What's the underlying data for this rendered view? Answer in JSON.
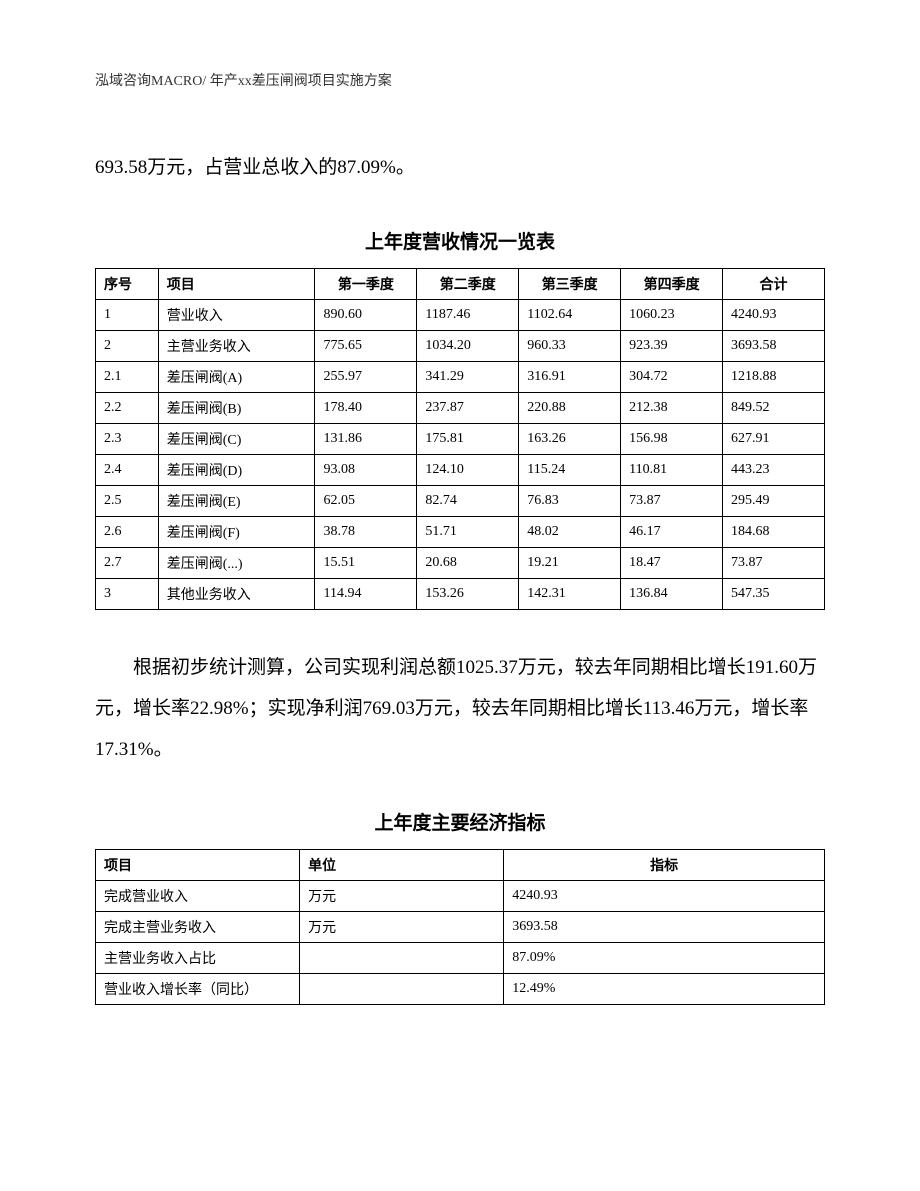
{
  "header": "泓域咨询MACRO/    年产xx差压闸阀项目实施方案",
  "intro_text": "693.58万元，占营业总收入的87.09%。",
  "table1": {
    "title": "上年度营收情况一览表",
    "columns": [
      "序号",
      "项目",
      "第一季度",
      "第二季度",
      "第三季度",
      "第四季度",
      "合计"
    ],
    "rows": [
      [
        "1",
        "营业收入",
        "890.60",
        "1187.46",
        "1102.64",
        "1060.23",
        "4240.93"
      ],
      [
        "2",
        "主营业务收入",
        "775.65",
        "1034.20",
        "960.33",
        "923.39",
        "3693.58"
      ],
      [
        "2.1",
        "差压闸阀(A)",
        "255.97",
        "341.29",
        "316.91",
        "304.72",
        "1218.88"
      ],
      [
        "2.2",
        "差压闸阀(B)",
        "178.40",
        "237.87",
        "220.88",
        "212.38",
        "849.52"
      ],
      [
        "2.3",
        "差压闸阀(C)",
        "131.86",
        "175.81",
        "163.26",
        "156.98",
        "627.91"
      ],
      [
        "2.4",
        "差压闸阀(D)",
        "93.08",
        "124.10",
        "115.24",
        "110.81",
        "443.23"
      ],
      [
        "2.5",
        "差压闸阀(E)",
        "62.05",
        "82.74",
        "76.83",
        "73.87",
        "295.49"
      ],
      [
        "2.6",
        "差压闸阀(F)",
        "38.78",
        "51.71",
        "48.02",
        "46.17",
        "184.68"
      ],
      [
        "2.7",
        "差压闸阀(...)",
        "15.51",
        "20.68",
        "19.21",
        "18.47",
        "73.87"
      ],
      [
        "3",
        "其他业务收入",
        "114.94",
        "153.26",
        "142.31",
        "136.84",
        "547.35"
      ]
    ]
  },
  "para2": "根据初步统计测算，公司实现利润总额1025.37万元，较去年同期相比增长191.60万元，增长率22.98%；实现净利润769.03万元，较去年同期相比增长113.46万元，增长率17.31%。",
  "table2": {
    "title": "上年度主要经济指标",
    "columns": [
      "项目",
      "单位",
      "指标"
    ],
    "rows": [
      [
        "完成营业收入",
        "万元",
        "4240.93"
      ],
      [
        "完成主营业务收入",
        "万元",
        "3693.58"
      ],
      [
        "主营业务收入占比",
        "",
        "87.09%"
      ],
      [
        "营业收入增长率（同比）",
        "",
        "12.49%"
      ]
    ]
  }
}
